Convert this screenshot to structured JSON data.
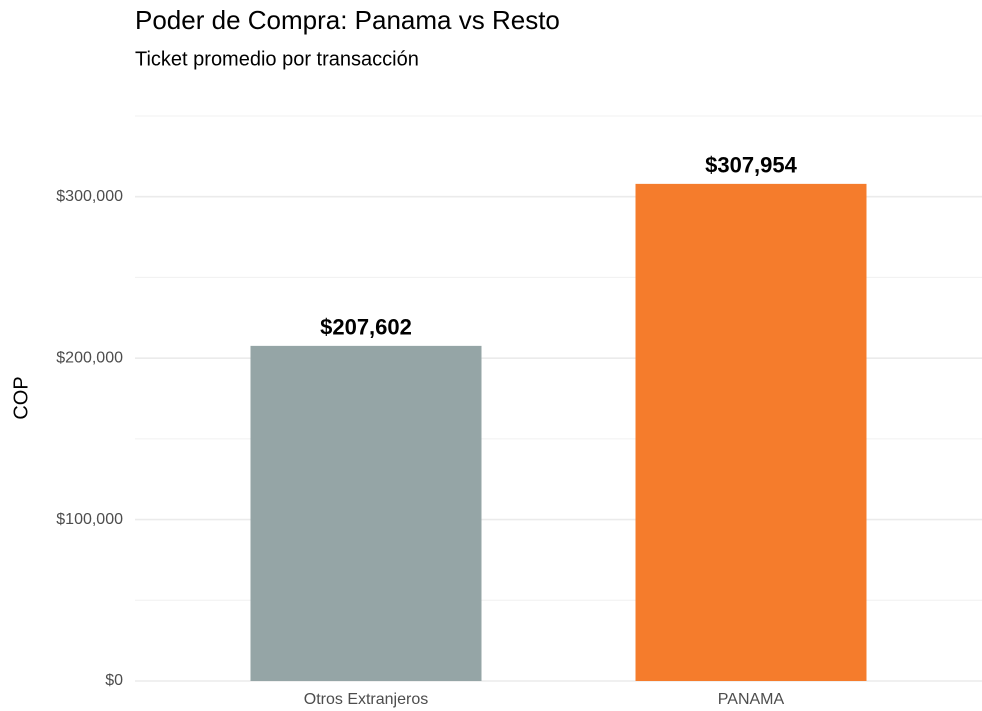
{
  "chart_data": {
    "type": "bar",
    "title": "Poder de Compra: Panama vs Resto",
    "subtitle": "Ticket promedio por transacción",
    "y_label": "COP",
    "categories": [
      "Otros Extranjeros",
      "PANAMA"
    ],
    "values": [
      207602,
      307954
    ],
    "value_labels": [
      "$207,602",
      "$307,954"
    ],
    "colors": [
      "#95a5a6",
      "#f57c2c"
    ],
    "ylim": [
      0,
      350000
    ],
    "yticks": [
      {
        "value": 0,
        "label": "$0"
      },
      {
        "value": 100000,
        "label": "$100,000"
      },
      {
        "value": 200000,
        "label": "$200,000"
      },
      {
        "value": 300000,
        "label": "$300,000"
      }
    ],
    "minor_yticks": [
      50000,
      150000,
      250000,
      350000
    ],
    "grid": true
  }
}
